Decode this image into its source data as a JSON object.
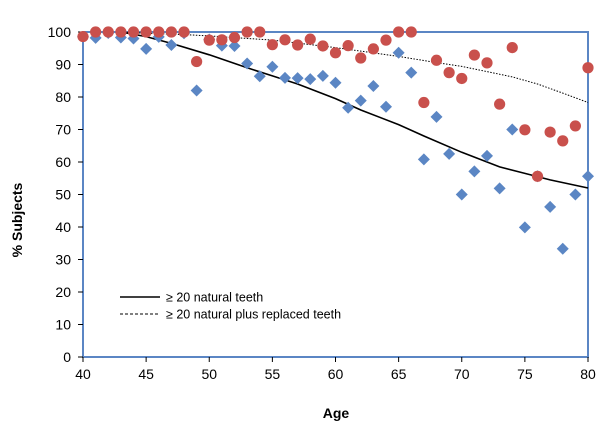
{
  "chart_data": {
    "type": "scatter",
    "xlabel": "Age",
    "ylabel": "% Subjects",
    "xlim": [
      40,
      80
    ],
    "ylim": [
      0,
      100
    ],
    "x_ticks": [
      "40",
      "45",
      "50",
      "55",
      "60",
      "65",
      "70",
      "75",
      "80"
    ],
    "y_ticks": [
      "0",
      "10",
      "20",
      "30",
      "40",
      "50",
      "60",
      "70",
      "80",
      "90",
      "100"
    ],
    "grid": false,
    "legend_position": "bottom-left",
    "colors": {
      "diamond": "#5b86c4",
      "circle": "#c9504c",
      "frame": "#5b86c4"
    },
    "scatter_series": [
      {
        "marker": "diamond",
        "points": [
          [
            40,
            98.5
          ],
          [
            41,
            98.2
          ],
          [
            42,
            99.7
          ],
          [
            43,
            98.3
          ],
          [
            44,
            98.0
          ],
          [
            45,
            94.8
          ],
          [
            46,
            98.5
          ],
          [
            47,
            96.0
          ],
          [
            48,
            99.6
          ],
          [
            49,
            82.0
          ],
          [
            50,
            97.7
          ],
          [
            51,
            95.8
          ],
          [
            52,
            95.7
          ],
          [
            53,
            90.3
          ],
          [
            54,
            86.4
          ],
          [
            55,
            89.3
          ],
          [
            56,
            85.9
          ],
          [
            57,
            85.8
          ],
          [
            58,
            85.5
          ],
          [
            59,
            86.5
          ],
          [
            60,
            84.4
          ],
          [
            61,
            76.7
          ],
          [
            62,
            78.9
          ],
          [
            63,
            83.4
          ],
          [
            64,
            77.0
          ],
          [
            65,
            93.6
          ],
          [
            66,
            87.5
          ],
          [
            67,
            60.8
          ],
          [
            68,
            73.9
          ],
          [
            69,
            62.5
          ],
          [
            70,
            50.0
          ],
          [
            71,
            57.1
          ],
          [
            72,
            61.9
          ],
          [
            73,
            51.9
          ],
          [
            74,
            70.0
          ],
          [
            75,
            39.9
          ],
          [
            76,
            55.6
          ],
          [
            77,
            46.2
          ],
          [
            78,
            33.3
          ],
          [
            79,
            50.0
          ],
          [
            80,
            55.6
          ]
        ]
      },
      {
        "marker": "circle",
        "points": [
          [
            40,
            98.6
          ],
          [
            41,
            100
          ],
          [
            42,
            100
          ],
          [
            43,
            100
          ],
          [
            44,
            100
          ],
          [
            45,
            100
          ],
          [
            46,
            100
          ],
          [
            47,
            100
          ],
          [
            48,
            100
          ],
          [
            49,
            90.9
          ],
          [
            50,
            97.5
          ],
          [
            51,
            97.6
          ],
          [
            52,
            98.3
          ],
          [
            53,
            100
          ],
          [
            54,
            100
          ],
          [
            55,
            96.1
          ],
          [
            56,
            97.6
          ],
          [
            57,
            96.0
          ],
          [
            58,
            97.8
          ],
          [
            59,
            95.7
          ],
          [
            60,
            93.6
          ],
          [
            61,
            95.8
          ],
          [
            62,
            92.0
          ],
          [
            63,
            94.8
          ],
          [
            64,
            97.5
          ],
          [
            65,
            100
          ],
          [
            66,
            100
          ],
          [
            67,
            78.3
          ],
          [
            68,
            91.3
          ],
          [
            69,
            87.5
          ],
          [
            70,
            85.7
          ],
          [
            71,
            92.9
          ],
          [
            72,
            90.5
          ],
          [
            73,
            77.8
          ],
          [
            74,
            95.2
          ],
          [
            75,
            69.9
          ],
          [
            76,
            55.6
          ],
          [
            77,
            69.2
          ],
          [
            78,
            66.5
          ],
          [
            79,
            71.1
          ],
          [
            80,
            89.0
          ]
        ]
      }
    ],
    "lines": [
      {
        "name": "≥ 20 natural teeth",
        "style": "solid",
        "points": [
          [
            43,
            100
          ],
          [
            45,
            98.6
          ],
          [
            47,
            96.5
          ],
          [
            50,
            93.0
          ],
          [
            53,
            89.0
          ],
          [
            55,
            86.5
          ],
          [
            57,
            84.0
          ],
          [
            60,
            79.5
          ],
          [
            62,
            76.0
          ],
          [
            65,
            71.5
          ],
          [
            67,
            68.0
          ],
          [
            70,
            63.0
          ],
          [
            73,
            58.5
          ],
          [
            75,
            56.5
          ],
          [
            77,
            54.5
          ],
          [
            80,
            52.0
          ]
        ]
      },
      {
        "name": "≥ 20 natural plus replaced teeth",
        "style": "dotted",
        "points": [
          [
            43,
            100
          ],
          [
            45,
            99.6
          ],
          [
            48,
            99.2
          ],
          [
            50,
            98.8
          ],
          [
            55,
            97.5
          ],
          [
            60,
            95.2
          ],
          [
            65,
            92.5
          ],
          [
            68,
            90.6
          ],
          [
            70,
            89.4
          ],
          [
            72,
            87.8
          ],
          [
            74,
            86.2
          ],
          [
            76,
            84.0
          ],
          [
            78,
            81.2
          ],
          [
            80,
            78.3
          ]
        ]
      }
    ]
  }
}
